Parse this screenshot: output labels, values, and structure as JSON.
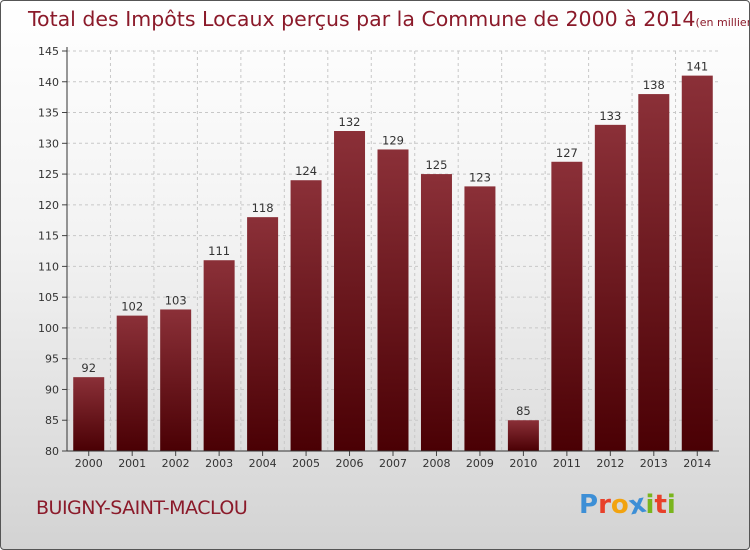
{
  "header": {
    "title": "Total des Impôts Locaux perçus par la Commune de 2000 à 2014",
    "unit_note": "(en milliers d'€)"
  },
  "footer": {
    "commune": "BUIGNY-SAINT-MACLOU",
    "logo_text": "Proxiti",
    "logo_letters": [
      {
        "char": "P",
        "color": "#3d8fd6"
      },
      {
        "char": "r",
        "color": "#e8402a"
      },
      {
        "char": "o",
        "color": "#f2a30f"
      },
      {
        "char": "x",
        "color": "#3d8fd6"
      },
      {
        "char": "i",
        "color": "#7ab51d"
      },
      {
        "char": "t",
        "color": "#e8402a"
      },
      {
        "char": "i",
        "color": "#7ab51d"
      }
    ]
  },
  "chart_data": {
    "type": "bar",
    "title": "Total des Impôts Locaux perçus par la Commune de 2000 à 2014",
    "ylabel": "en milliers d'€",
    "xlabel": "",
    "categories": [
      "2000",
      "2001",
      "2002",
      "2003",
      "2004",
      "2005",
      "2006",
      "2007",
      "2008",
      "2009",
      "2010",
      "2011",
      "2012",
      "2013",
      "2014"
    ],
    "values": [
      92,
      102,
      103,
      111,
      118,
      124,
      132,
      129,
      125,
      123,
      85,
      127,
      133,
      138,
      141
    ],
    "ylim": [
      80,
      145
    ],
    "yticks": [
      80,
      85,
      90,
      95,
      100,
      105,
      110,
      115,
      120,
      125,
      130,
      135,
      140,
      145
    ],
    "grid": true,
    "bar_color_top": "#8b3038",
    "bar_color_bottom": "#4a0004"
  }
}
